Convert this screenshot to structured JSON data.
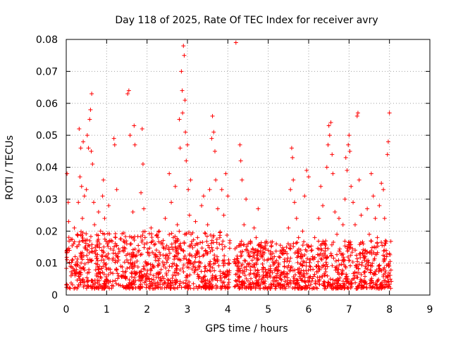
{
  "chart_data": {
    "type": "scatter",
    "title": "Day 118 of 2025, Rate Of TEC Index for receiver avry",
    "xlabel": "GPS time / hours",
    "ylabel": "ROTI / TECUs",
    "xlim": [
      0,
      9
    ],
    "ylim": [
      0,
      0.08
    ],
    "x_ticks": [
      "0",
      "1",
      "2",
      "3",
      "4",
      "5",
      "6",
      "7",
      "8",
      "9"
    ],
    "y_ticks": [
      "0",
      "0.01",
      "0.02",
      "0.03",
      "0.04",
      "0.05",
      "0.06",
      "0.07",
      "0.08"
    ],
    "grid": true,
    "marker": "+",
    "color": "#ff0000",
    "series": [
      {
        "name": "ROTI",
        "points": [
          [
            0.02,
            0.038
          ],
          [
            0.05,
            0.029
          ],
          [
            0.06,
            0.023
          ],
          [
            0.08,
            0.014
          ],
          [
            0.1,
            0.009
          ],
          [
            0.12,
            0.006
          ],
          [
            0.15,
            0.011
          ],
          [
            0.18,
            0.016
          ],
          [
            0.2,
            0.021
          ],
          [
            0.22,
            0.012
          ],
          [
            0.25,
            0.008
          ],
          [
            0.28,
            0.019
          ],
          [
            0.3,
            0.029
          ],
          [
            0.32,
            0.052
          ],
          [
            0.34,
            0.037
          ],
          [
            0.36,
            0.046
          ],
          [
            0.38,
            0.034
          ],
          [
            0.4,
            0.024
          ],
          [
            0.42,
            0.048
          ],
          [
            0.45,
            0.031
          ],
          [
            0.48,
            0.015
          ],
          [
            0.5,
            0.033
          ],
          [
            0.52,
            0.05
          ],
          [
            0.55,
            0.046
          ],
          [
            0.58,
            0.055
          ],
          [
            0.6,
            0.058
          ],
          [
            0.62,
            0.045
          ],
          [
            0.63,
            0.063
          ],
          [
            0.65,
            0.041
          ],
          [
            0.68,
            0.029
          ],
          [
            0.7,
            0.022
          ],
          [
            0.72,
            0.013
          ],
          [
            0.75,
            0.006
          ],
          [
            0.78,
            0.017
          ],
          [
            0.8,
            0.026
          ],
          [
            0.82,
            0.009
          ],
          [
            0.85,
            0.02
          ],
          [
            0.88,
            0.014
          ],
          [
            0.9,
            0.031
          ],
          [
            0.92,
            0.036
          ],
          [
            0.95,
            0.024
          ],
          [
            0.98,
            0.012
          ],
          [
            1.0,
            0.008
          ],
          [
            1.02,
            0.016
          ],
          [
            1.05,
            0.028
          ],
          [
            1.1,
            0.007
          ],
          [
            1.15,
            0.011
          ],
          [
            1.18,
            0.049
          ],
          [
            1.2,
            0.047
          ],
          [
            1.22,
            0.018
          ],
          [
            1.25,
            0.033
          ],
          [
            1.28,
            0.012
          ],
          [
            1.3,
            0.006
          ],
          [
            1.35,
            0.009
          ],
          [
            1.4,
            0.014
          ],
          [
            1.45,
            0.007
          ],
          [
            1.5,
            0.011
          ],
          [
            1.52,
            0.063
          ],
          [
            1.55,
            0.064
          ],
          [
            1.58,
            0.05
          ],
          [
            1.6,
            0.016
          ],
          [
            1.62,
            0.009
          ],
          [
            1.65,
            0.026
          ],
          [
            1.68,
            0.053
          ],
          [
            1.7,
            0.047
          ],
          [
            1.72,
            0.012
          ],
          [
            1.75,
            0.007
          ],
          [
            1.8,
            0.014
          ],
          [
            1.85,
            0.032
          ],
          [
            1.88,
            0.052
          ],
          [
            1.9,
            0.041
          ],
          [
            1.92,
            0.027
          ],
          [
            1.95,
            0.018
          ],
          [
            1.98,
            0.01
          ],
          [
            2.0,
            0.006
          ],
          [
            2.05,
            0.013
          ],
          [
            2.1,
            0.021
          ],
          [
            2.15,
            0.009
          ],
          [
            2.2,
            0.016
          ],
          [
            2.25,
            0.012
          ],
          [
            2.3,
            0.02
          ],
          [
            2.35,
            0.008
          ],
          [
            2.4,
            0.015
          ],
          [
            2.45,
            0.024
          ],
          [
            2.5,
            0.011
          ],
          [
            2.55,
            0.038
          ],
          [
            2.6,
            0.029
          ],
          [
            2.65,
            0.018
          ],
          [
            2.7,
            0.034
          ],
          [
            2.75,
            0.022
          ],
          [
            2.8,
            0.055
          ],
          [
            2.82,
            0.046
          ],
          [
            2.85,
            0.07
          ],
          [
            2.87,
            0.064
          ],
          [
            2.88,
            0.057
          ],
          [
            2.9,
            0.078
          ],
          [
            2.92,
            0.075
          ],
          [
            2.94,
            0.061
          ],
          [
            2.95,
            0.051
          ],
          [
            2.97,
            0.042
          ],
          [
            3.0,
            0.047
          ],
          [
            3.02,
            0.033
          ],
          [
            3.05,
            0.025
          ],
          [
            3.08,
            0.036
          ],
          [
            3.1,
            0.016
          ],
          [
            3.15,
            0.009
          ],
          [
            3.2,
            0.023
          ],
          [
            3.25,
            0.018
          ],
          [
            3.3,
            0.012
          ],
          [
            3.35,
            0.028
          ],
          [
            3.4,
            0.031
          ],
          [
            3.45,
            0.014
          ],
          [
            3.5,
            0.022
          ],
          [
            3.55,
            0.033
          ],
          [
            3.6,
            0.049
          ],
          [
            3.62,
            0.056
          ],
          [
            3.65,
            0.051
          ],
          [
            3.68,
            0.045
          ],
          [
            3.7,
            0.036
          ],
          [
            3.75,
            0.027
          ],
          [
            3.8,
            0.018
          ],
          [
            3.85,
            0.033
          ],
          [
            3.9,
            0.025
          ],
          [
            3.95,
            0.038
          ],
          [
            4.0,
            0.031
          ],
          [
            4.02,
            0.011
          ],
          [
            4.2,
            0.079
          ],
          [
            4.22,
            0.015
          ],
          [
            4.25,
            0.009
          ],
          [
            4.3,
            0.047
          ],
          [
            4.32,
            0.042
          ],
          [
            4.35,
            0.036
          ],
          [
            4.4,
            0.022
          ],
          [
            4.45,
            0.03
          ],
          [
            4.5,
            0.016
          ],
          [
            4.55,
            0.012
          ],
          [
            4.6,
            0.009
          ],
          [
            4.65,
            0.021
          ],
          [
            4.7,
            0.018
          ],
          [
            4.75,
            0.027
          ],
          [
            4.8,
            0.013
          ],
          [
            4.85,
            0.008
          ],
          [
            4.9,
            0.011
          ],
          [
            4.95,
            0.006
          ],
          [
            5.0,
            0.014
          ],
          [
            5.05,
            0.009
          ],
          [
            5.1,
            0.007
          ],
          [
            5.15,
            0.012
          ],
          [
            5.2,
            0.016
          ],
          [
            5.25,
            0.01
          ],
          [
            5.3,
            0.006
          ],
          [
            5.35,
            0.013
          ],
          [
            5.4,
            0.009
          ],
          [
            5.45,
            0.015
          ],
          [
            5.5,
            0.021
          ],
          [
            5.55,
            0.033
          ],
          [
            5.58,
            0.046
          ],
          [
            5.6,
            0.043
          ],
          [
            5.62,
            0.036
          ],
          [
            5.65,
            0.029
          ],
          [
            5.7,
            0.024
          ],
          [
            5.75,
            0.018
          ],
          [
            5.8,
            0.012
          ],
          [
            5.85,
            0.02
          ],
          [
            5.9,
            0.031
          ],
          [
            5.95,
            0.039
          ],
          [
            6.0,
            0.037
          ],
          [
            6.05,
            0.008
          ],
          [
            6.1,
            0.012
          ],
          [
            6.15,
            0.018
          ],
          [
            6.2,
            0.009
          ],
          [
            6.25,
            0.024
          ],
          [
            6.3,
            0.034
          ],
          [
            6.35,
            0.028
          ],
          [
            6.4,
            0.016
          ],
          [
            6.45,
            0.04
          ],
          [
            6.48,
            0.047
          ],
          [
            6.5,
            0.053
          ],
          [
            6.52,
            0.05
          ],
          [
            6.55,
            0.054
          ],
          [
            6.58,
            0.044
          ],
          [
            6.6,
            0.038
          ],
          [
            6.65,
            0.026
          ],
          [
            6.7,
            0.019
          ],
          [
            6.75,
            0.024
          ],
          [
            6.8,
            0.013
          ],
          [
            6.85,
            0.022
          ],
          [
            6.9,
            0.03
          ],
          [
            6.92,
            0.043
          ],
          [
            6.95,
            0.039
          ],
          [
            6.98,
            0.047
          ],
          [
            7.0,
            0.05
          ],
          [
            7.02,
            0.045
          ],
          [
            7.05,
            0.034
          ],
          [
            7.1,
            0.029
          ],
          [
            7.15,
            0.022
          ],
          [
            7.2,
            0.056
          ],
          [
            7.22,
            0.057
          ],
          [
            7.25,
            0.036
          ],
          [
            7.3,
            0.025
          ],
          [
            7.35,
            0.016
          ],
          [
            7.4,
            0.012
          ],
          [
            7.45,
            0.027
          ],
          [
            7.5,
            0.019
          ],
          [
            7.55,
            0.038
          ],
          [
            7.6,
            0.031
          ],
          [
            7.65,
            0.024
          ],
          [
            7.7,
            0.018
          ],
          [
            7.75,
            0.028
          ],
          [
            7.8,
            0.035
          ],
          [
            7.85,
            0.033
          ],
          [
            7.88,
            0.024
          ],
          [
            7.9,
            0.017
          ],
          [
            7.93,
            0.012
          ],
          [
            7.95,
            0.044
          ],
          [
            7.97,
            0.048
          ],
          [
            8.0,
            0.057
          ],
          [
            8.0,
            0.013
          ],
          [
            8.02,
            0.005
          ],
          [
            7.98,
            0.009
          ]
        ],
        "dense_bands": [
          {
            "x": [
              0.0,
              4.05
            ],
            "y": [
              0.002,
              0.02
            ]
          },
          {
            "x": [
              4.15,
              8.05
            ],
            "y": [
              0.002,
              0.017
            ]
          }
        ]
      }
    ]
  }
}
